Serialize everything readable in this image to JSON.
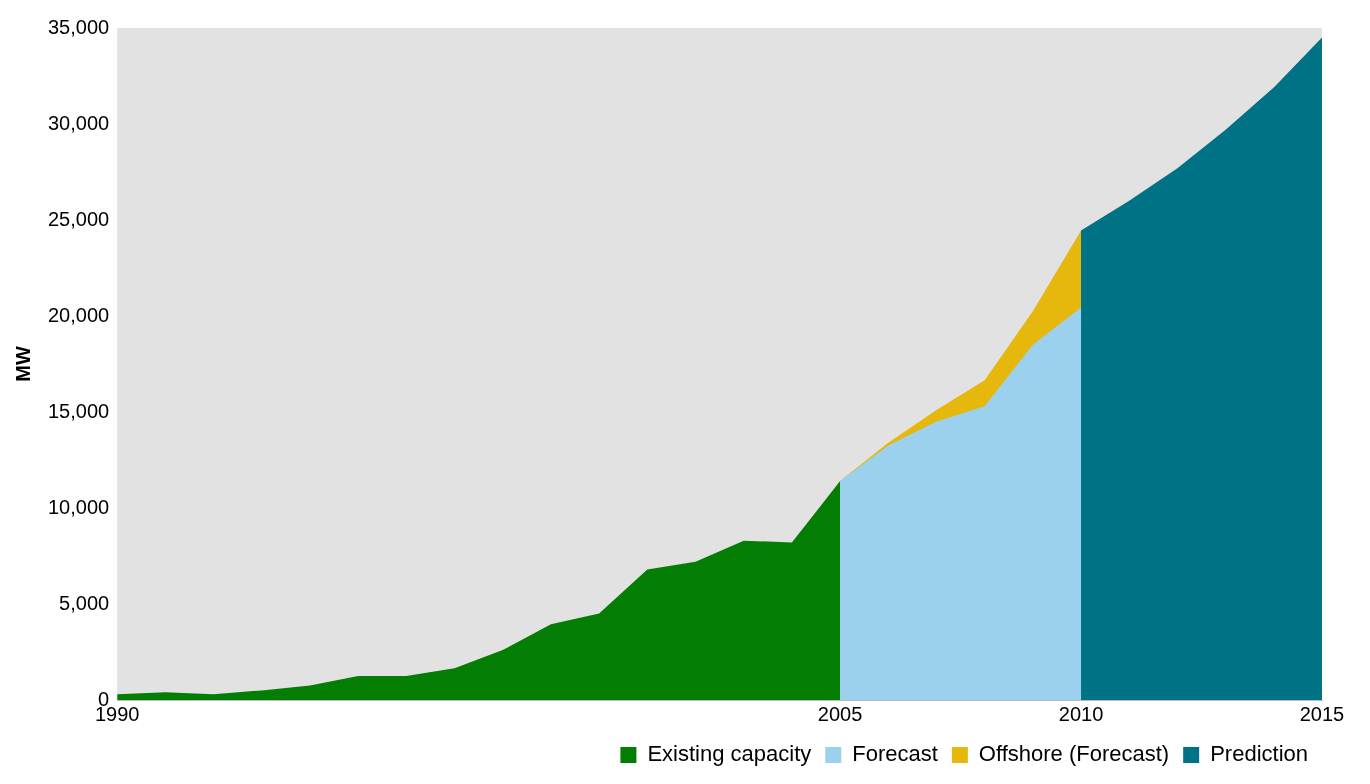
{
  "chart_data": {
    "type": "area",
    "ylabel": "MW",
    "legend": "bottom right",
    "grid": false,
    "xlim": [
      1990,
      2015
    ],
    "xticks": [
      1990,
      2005,
      2010,
      2015
    ],
    "ylim": [
      0,
      35000
    ],
    "yticks": [
      0,
      {
        "value": 5000,
        "label": "5,000"
      },
      {
        "value": 10000,
        "label": "10,000"
      },
      {
        "value": 15000,
        "label": "15,000"
      },
      {
        "value": 20000,
        "label": "20,000"
      },
      {
        "value": 25000,
        "label": "25,000"
      },
      {
        "value": 30000,
        "label": "30,000"
      },
      {
        "value": 35000,
        "label": "35,000"
      }
    ],
    "series": [
      {
        "name": "Prediction",
        "color": "#007285",
        "x": [
          2010,
          2011,
          2012,
          2013,
          2014,
          2015
        ],
        "values": [
          24450,
          26000,
          27700,
          29700,
          31900,
          34500
        ]
      },
      {
        "name": "Offshore (Forecast)",
        "color": "#e6b80e",
        "x": [
          2005,
          2006,
          2007,
          2008,
          2009,
          2010
        ],
        "values": [
          11400,
          13400,
          15100,
          16650,
          20250,
          24450
        ]
      },
      {
        "name": "Forecast",
        "color": "#9bd1ee",
        "x": [
          2005,
          2006,
          2007,
          2008,
          2009,
          2010
        ],
        "values": [
          11400,
          13250,
          14500,
          15300,
          18500,
          20450
        ]
      },
      {
        "name": "Existing capacity",
        "color": "#037d03",
        "x": [
          1990,
          1991,
          1992,
          1993,
          1994,
          1995,
          1996,
          1997,
          1998,
          1999,
          2000,
          2001,
          2002,
          2003,
          2004,
          2005
        ],
        "values": [
          300,
          400,
          300,
          500,
          750,
          1250,
          1250,
          1650,
          2600,
          3950,
          4500,
          6800,
          7200,
          8300,
          8200,
          11400
        ]
      }
    ]
  }
}
